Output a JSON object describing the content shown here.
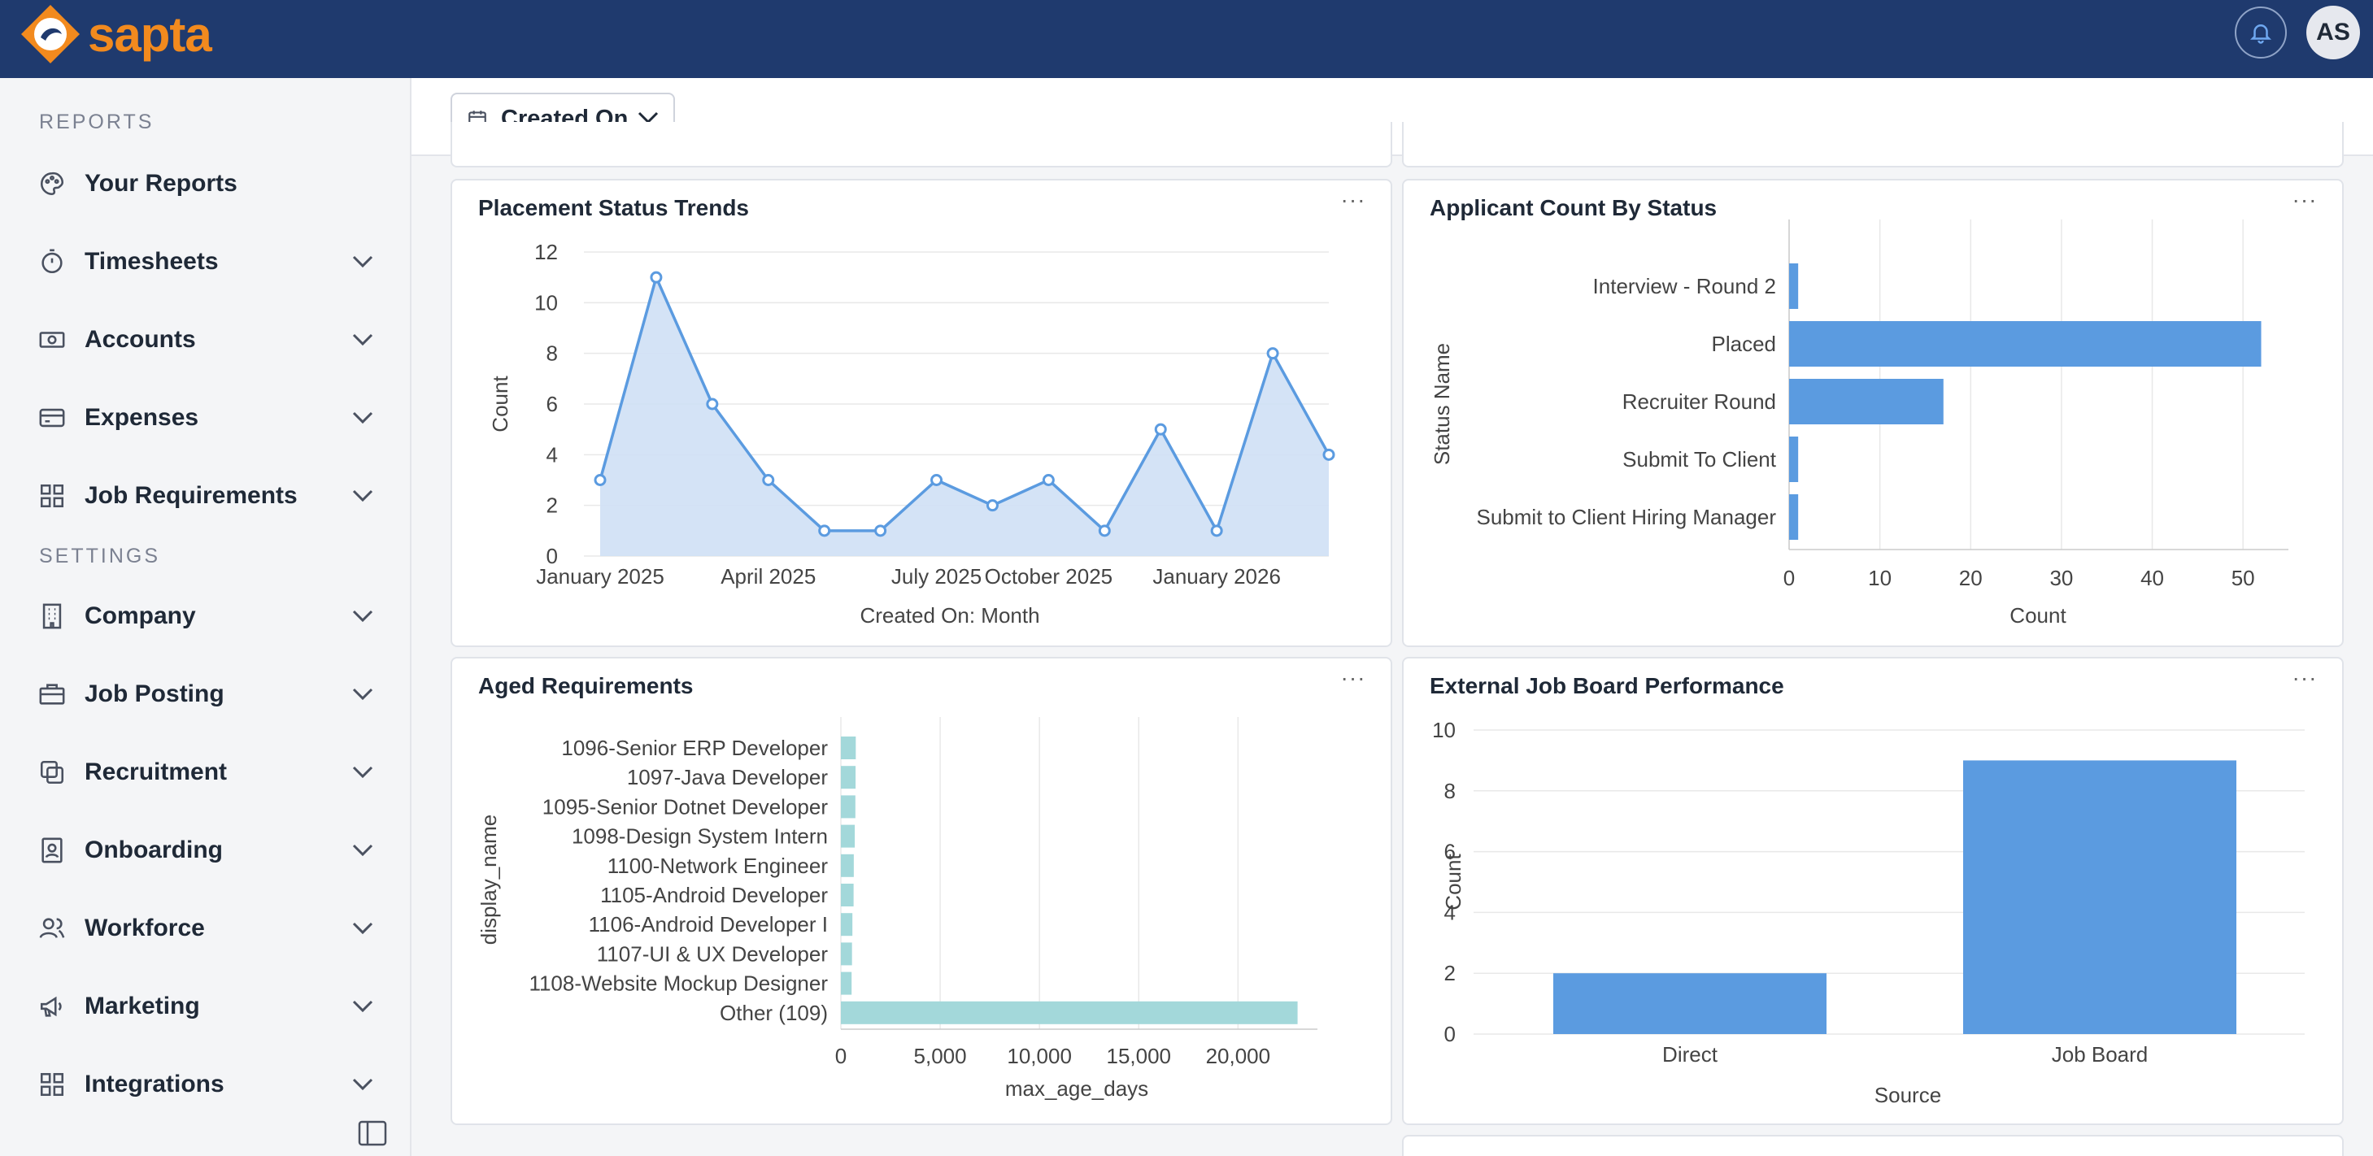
{
  "app": {
    "logo_text": "sapta",
    "avatar_initials": "AS"
  },
  "sidebar": {
    "reports_title": "REPORTS",
    "settings_title": "SETTINGS",
    "reports_items": [
      {
        "label": "Your Reports",
        "icon": "palette-icon",
        "has_chevron": false
      },
      {
        "label": "Timesheets",
        "icon": "stopwatch-icon",
        "has_chevron": true
      },
      {
        "label": "Accounts",
        "icon": "cash-icon",
        "has_chevron": true
      },
      {
        "label": "Expenses",
        "icon": "credit-card-icon",
        "has_chevron": true
      },
      {
        "label": "Job Requirements",
        "icon": "grid-icon",
        "has_chevron": true
      }
    ],
    "settings_items": [
      {
        "label": "Company",
        "icon": "building-icon",
        "has_chevron": true
      },
      {
        "label": "Job Posting",
        "icon": "briefcase-icon",
        "has_chevron": true
      },
      {
        "label": "Recruitment",
        "icon": "copy-icon",
        "has_chevron": true
      },
      {
        "label": "Onboarding",
        "icon": "id-badge-icon",
        "has_chevron": true
      },
      {
        "label": "Workforce",
        "icon": "users-icon",
        "has_chevron": true
      },
      {
        "label": "Marketing",
        "icon": "megaphone-icon",
        "has_chevron": true
      },
      {
        "label": "Integrations",
        "icon": "grid-icon",
        "has_chevron": true
      }
    ]
  },
  "filter": {
    "label": "Created On"
  },
  "colors": {
    "brand_orange": "#f28a1e",
    "header_navy": "#1f3a6e",
    "series_blue": "#5b9be0",
    "area_fill": "#cfe0f5",
    "teal": "#a3d8da"
  },
  "chart_data": [
    {
      "id": "placement",
      "type": "area",
      "title": "Placement Status Trends",
      "xlabel": "Created On: Month",
      "ylabel": "Count",
      "ylim": [
        0,
        12
      ],
      "yticks": [
        0,
        2,
        4,
        6,
        8,
        10,
        12
      ],
      "x": [
        "2024-12",
        "2025-01",
        "2025-02",
        "2025-03",
        "2025-04",
        "2025-05",
        "2025-06",
        "2025-07",
        "2025-09",
        "2025-10",
        "2025-11",
        "2025-12",
        "2026-01",
        "2026-02"
      ],
      "values": [
        3,
        11,
        6,
        3,
        1,
        1,
        3,
        2,
        3,
        1,
        5,
        1,
        8,
        4
      ],
      "xtick_labels": [
        {
          "x": "2024-12",
          "label": "January 2025"
        },
        {
          "x": "2025-03",
          "label": "April 2025"
        },
        {
          "x": "2025-06",
          "label": "July 2025"
        },
        {
          "x": "2025-09",
          "label": "October 2025"
        },
        {
          "x": "2025-12",
          "label": "January 2026"
        }
      ],
      "grid": true
    },
    {
      "id": "applicant",
      "type": "bar",
      "orientation": "horizontal",
      "title": "Applicant Count By Status",
      "xlabel": "Count",
      "ylabel": "Status Name",
      "categories": [
        "Interview - Round 2",
        "Placed",
        "Recruiter Round",
        "Submit To Client",
        "Submit to Client Hiring Manager"
      ],
      "values": [
        1,
        52,
        17,
        1,
        1
      ],
      "xlim": [
        0,
        55
      ],
      "xticks": [
        0,
        10,
        20,
        30,
        40,
        50
      ],
      "grid": true
    },
    {
      "id": "aged",
      "type": "bar",
      "orientation": "horizontal",
      "title": "Aged Requirements",
      "xlabel": "max_age_days",
      "ylabel": "display_name",
      "categories": [
        "1096-Senior ERP Developer",
        "1097-Java Developer",
        "1095-Senior Dotnet Developer",
        "1098-Design System Intern",
        "1100-Network Engineer",
        "1105-Android Developer",
        "1106-Android Developer I",
        "1107-UI & UX Developer",
        "1108-Website Mockup Designer",
        "Other (109)"
      ],
      "values": [
        750,
        740,
        730,
        700,
        650,
        640,
        580,
        560,
        540,
        23000
      ],
      "xlim": [
        0,
        24000
      ],
      "xticks": [
        0,
        5000,
        10000,
        15000,
        20000
      ],
      "xtick_labels": [
        "0",
        "5,000",
        "10,000",
        "15,000",
        "20,000"
      ],
      "grid": true
    },
    {
      "id": "jobboard",
      "type": "bar",
      "title": "External Job Board Performance",
      "xlabel": "Source",
      "ylabel": "Count",
      "categories": [
        "Direct",
        "Job Board"
      ],
      "values": [
        2,
        9
      ],
      "ylim": [
        0,
        10
      ],
      "yticks": [
        0,
        2,
        4,
        6,
        8,
        10
      ],
      "grid": true
    }
  ]
}
